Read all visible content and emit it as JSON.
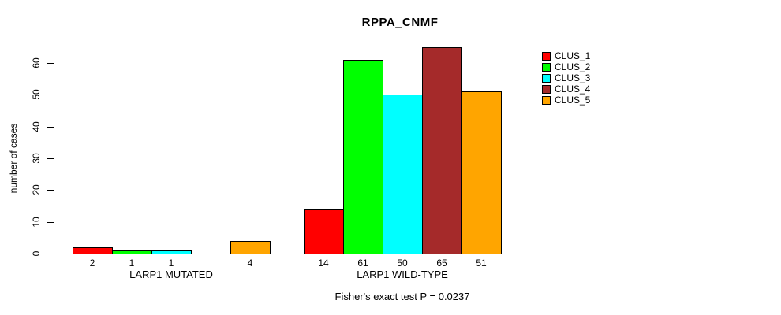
{
  "title": "RPPA_CNMF",
  "footer": "Fisher's exact test P = 0.0237",
  "y_axis": {
    "label": "number of cases",
    "ticks": [
      "0",
      "10",
      "20",
      "30",
      "40",
      "50",
      "60"
    ]
  },
  "legend": {
    "items": [
      {
        "label": "CLUS_1",
        "color": "#FF0000"
      },
      {
        "label": "CLUS_2",
        "color": "#00FF00"
      },
      {
        "label": "CLUS_3",
        "color": "#00FFFF"
      },
      {
        "label": "CLUS_4",
        "color": "#A52A2A"
      },
      {
        "label": "CLUS_5",
        "color": "#FFA500"
      }
    ]
  },
  "chart_data": {
    "type": "bar",
    "title": "RPPA_CNMF",
    "xlabel": "",
    "ylabel": "number of cases",
    "ylim": [
      0,
      65
    ],
    "yticks": [
      0,
      10,
      20,
      30,
      40,
      50,
      60
    ],
    "grid": false,
    "legend_position": "right-outside",
    "series_names": [
      "CLUS_1",
      "CLUS_2",
      "CLUS_3",
      "CLUS_4",
      "CLUS_5"
    ],
    "series_colors": [
      "#FF0000",
      "#00FF00",
      "#00FFFF",
      "#A52A2A",
      "#FFA500"
    ],
    "groups": [
      {
        "label": "LARP1 MUTATED",
        "values": [
          2,
          1,
          1,
          0,
          4
        ],
        "value_labels": [
          "2",
          "1",
          "1",
          "",
          "4"
        ]
      },
      {
        "label": "LARP1 WILD-TYPE",
        "values": [
          14,
          61,
          50,
          65,
          51
        ],
        "value_labels": [
          "14",
          "61",
          "50",
          "65",
          "51"
        ]
      }
    ],
    "annotation": "Fisher's exact test P = 0.0237"
  }
}
